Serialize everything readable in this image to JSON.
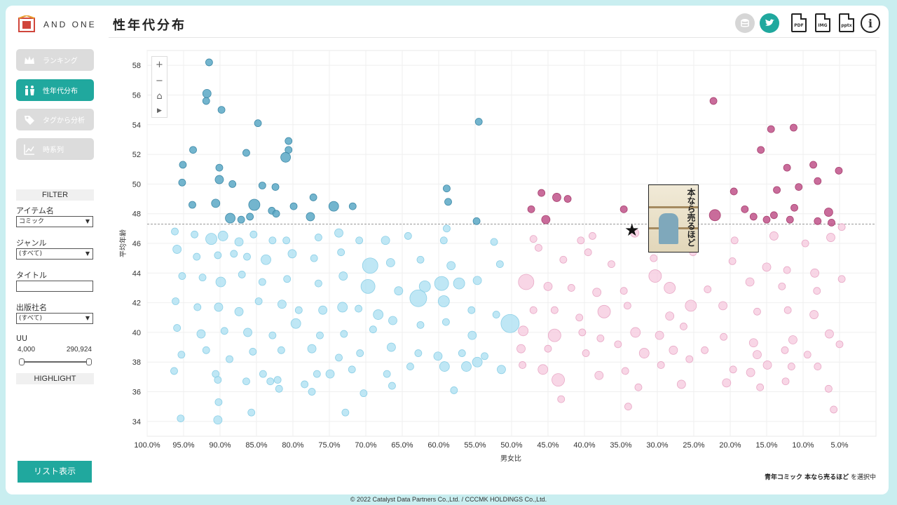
{
  "app": {
    "brand": "AND ONE"
  },
  "sidebar": {
    "nav": [
      {
        "label": "ランキング",
        "icon": "crown-icon",
        "active": false
      },
      {
        "label": "性年代分布",
        "icon": "people-icon",
        "active": true
      },
      {
        "label": "タグから分析",
        "icon": "tag-icon",
        "active": false
      },
      {
        "label": "時系列",
        "icon": "line-chart-icon",
        "active": false
      }
    ],
    "filter": {
      "title": "FILTER",
      "item_label": "アイテム名",
      "item_value": "コミック",
      "genre_label": "ジャンル",
      "genre_value": "(すべて)",
      "title_label": "タイトル",
      "title_value": "",
      "publisher_label": "出版社名",
      "publisher_value": "(すべて)",
      "uu_label": "UU",
      "uu_min": "4,000",
      "uu_max": "290,924"
    },
    "highlight": "HIGHLIGHT",
    "list_button": "リスト表示"
  },
  "header": {
    "title": "性年代分布",
    "tools": [
      {
        "name": "database-icon",
        "label": ""
      },
      {
        "name": "bird-icon",
        "label": ""
      },
      {
        "name": "pdf-export-icon",
        "label": "PDF"
      },
      {
        "name": "img-export-icon",
        "label": "IMG"
      },
      {
        "name": "pptx-export-icon",
        "label": "pptx"
      },
      {
        "name": "info-icon",
        "label": "i"
      }
    ]
  },
  "status": {
    "selected_title": "青年コミック 本なら売るほど",
    "suffix": "を選択中"
  },
  "cover": {
    "title": "本なら売るほど"
  },
  "footer": "© 2022 Catalyst Data Partners Co.,Ltd. / CCCMK HOLDINGS Co.,Ltd.",
  "chart_data": {
    "type": "scatter",
    "title": "性年代分布",
    "xlabel": "男女比",
    "ylabel": "平均年齢",
    "x_reversed": true,
    "xlim": [
      100,
      0
    ],
    "ylim": [
      33,
      59
    ],
    "xticks": [
      "100.0%",
      "95.0%",
      "90.0%",
      "85.0%",
      "80.0%",
      "75.0%",
      "70.0%",
      "65.0%",
      "60.0%",
      "55.0%",
      "50.0%",
      "45.0%",
      "40.0%",
      "35.0%",
      "30.0%",
      "25.0%",
      "20.0%",
      "15.0%",
      "10.0%",
      "5.0%"
    ],
    "yticks": [
      34,
      36,
      38,
      40,
      42,
      44,
      46,
      48,
      50,
      52,
      54,
      56,
      58
    ],
    "reference_line_y": 47.3,
    "selected_point": {
      "x": 34,
      "y": 46.9
    },
    "colors": {
      "male": "#a9dff2",
      "male_dark": "#5ba8c5",
      "female": "#f5c8dd",
      "female_dark": "#c0528a"
    },
    "points": [
      [
        91.5,
        58.2,
        5
      ],
      [
        91.8,
        56.1,
        6
      ],
      [
        91.9,
        55.6,
        5
      ],
      [
        89.8,
        55.0,
        5
      ],
      [
        84.8,
        54.1,
        5
      ],
      [
        54.5,
        54.2,
        5
      ],
      [
        22.3,
        55.6,
        5
      ],
      [
        14.4,
        53.7,
        5
      ],
      [
        11.3,
        53.8,
        5
      ],
      [
        93.7,
        52.3,
        5
      ],
      [
        80.6,
        52.9,
        5
      ],
      [
        80.6,
        52.3,
        5
      ],
      [
        86.4,
        52.1,
        5
      ],
      [
        81.0,
        51.8,
        7
      ],
      [
        90.1,
        51.1,
        5
      ],
      [
        95.1,
        51.3,
        5
      ],
      [
        15.8,
        52.3,
        5
      ],
      [
        12.2,
        51.1,
        5
      ],
      [
        8.6,
        51.3,
        5
      ],
      [
        5.1,
        50.9,
        5
      ],
      [
        90.1,
        50.3,
        6
      ],
      [
        95.2,
        50.1,
        5
      ],
      [
        88.3,
        50.0,
        5
      ],
      [
        84.2,
        49.9,
        5
      ],
      [
        82.4,
        49.8,
        5
      ],
      [
        58.9,
        49.7,
        5
      ],
      [
        19.5,
        49.5,
        5
      ],
      [
        13.6,
        49.6,
        5
      ],
      [
        10.6,
        49.8,
        5
      ],
      [
        8.0,
        50.2,
        5
      ],
      [
        45.9,
        49.4,
        5
      ],
      [
        93.8,
        48.6,
        5
      ],
      [
        90.6,
        48.7,
        6
      ],
      [
        85.3,
        48.6,
        8
      ],
      [
        82.9,
        48.2,
        5
      ],
      [
        79.9,
        48.5,
        5
      ],
      [
        74.4,
        48.5,
        7
      ],
      [
        71.8,
        48.5,
        5
      ],
      [
        77.2,
        49.1,
        5
      ],
      [
        58.7,
        48.8,
        5
      ],
      [
        43.8,
        49.1,
        6
      ],
      [
        42.3,
        49.0,
        5
      ],
      [
        47.3,
        48.3,
        5
      ],
      [
        34.6,
        48.3,
        5
      ],
      [
        18.0,
        48.3,
        5
      ],
      [
        14.0,
        47.9,
        5
      ],
      [
        11.2,
        48.4,
        5
      ],
      [
        6.5,
        48.1,
        6
      ],
      [
        88.6,
        47.7,
        7
      ],
      [
        87.1,
        47.6,
        5
      ],
      [
        85.9,
        47.8,
        5
      ],
      [
        82.3,
        48.0,
        5
      ],
      [
        77.6,
        47.8,
        6
      ],
      [
        58.9,
        47.0,
        5
      ],
      [
        54.8,
        47.5,
        5
      ],
      [
        45.3,
        47.6,
        6
      ],
      [
        22.1,
        47.9,
        8
      ],
      [
        16.8,
        47.8,
        5
      ],
      [
        15.0,
        47.6,
        5
      ],
      [
        11.8,
        47.6,
        5
      ],
      [
        8.0,
        47.5,
        5
      ],
      [
        6.1,
        47.4,
        5
      ],
      [
        96.2,
        46.8,
        5
      ],
      [
        93.5,
        46.6,
        5
      ],
      [
        91.2,
        46.3,
        8
      ],
      [
        89.6,
        46.5,
        7
      ],
      [
        87.4,
        46.1,
        6
      ],
      [
        85.4,
        46.6,
        5
      ],
      [
        82.8,
        46.2,
        5
      ],
      [
        80.9,
        46.2,
        5
      ],
      [
        76.5,
        46.4,
        5
      ],
      [
        73.7,
        46.7,
        6
      ],
      [
        70.9,
        46.2,
        5
      ],
      [
        67.3,
        46.2,
        6
      ],
      [
        64.2,
        46.5,
        5
      ],
      [
        59.3,
        46.2,
        5
      ],
      [
        52.4,
        46.1,
        5
      ],
      [
        47.0,
        46.3,
        5
      ],
      [
        40.5,
        46.2,
        5
      ],
      [
        38.9,
        46.5,
        5
      ],
      [
        33.1,
        46.7,
        6
      ],
      [
        26.9,
        46.3,
        5
      ],
      [
        19.4,
        46.2,
        5
      ],
      [
        14.0,
        46.5,
        6
      ],
      [
        9.7,
        46.0,
        5
      ],
      [
        6.2,
        46.4,
        6
      ],
      [
        4.7,
        47.1,
        5
      ],
      [
        95.9,
        45.6,
        6
      ],
      [
        93.2,
        45.1,
        5
      ],
      [
        90.3,
        45.2,
        5
      ],
      [
        88.1,
        45.3,
        5
      ],
      [
        86.3,
        45.1,
        5
      ],
      [
        83.7,
        44.9,
        7
      ],
      [
        80.1,
        45.3,
        6
      ],
      [
        77.1,
        45.0,
        5
      ],
      [
        73.4,
        45.4,
        5
      ],
      [
        69.4,
        44.5,
        11
      ],
      [
        66.6,
        44.7,
        6
      ],
      [
        62.5,
        44.9,
        5
      ],
      [
        58.3,
        44.5,
        6
      ],
      [
        51.6,
        44.6,
        5
      ],
      [
        46.3,
        45.7,
        5
      ],
      [
        42.9,
        44.9,
        5
      ],
      [
        39.5,
        45.4,
        5
      ],
      [
        36.3,
        44.6,
        5
      ],
      [
        30.5,
        45.0,
        5
      ],
      [
        25.1,
        45.4,
        5
      ],
      [
        19.7,
        44.8,
        5
      ],
      [
        15.0,
        44.4,
        6
      ],
      [
        12.2,
        44.2,
        5
      ],
      [
        8.4,
        44.0,
        6
      ],
      [
        4.7,
        43.6,
        5
      ],
      [
        95.2,
        43.8,
        5
      ],
      [
        92.4,
        43.7,
        5
      ],
      [
        89.9,
        43.4,
        7
      ],
      [
        87.0,
        43.9,
        5
      ],
      [
        84.2,
        43.4,
        5
      ],
      [
        80.8,
        43.6,
        5
      ],
      [
        76.5,
        43.3,
        5
      ],
      [
        73.1,
        43.8,
        6
      ],
      [
        69.7,
        43.1,
        10
      ],
      [
        65.5,
        42.8,
        6
      ],
      [
        61.9,
        43.1,
        8
      ],
      [
        59.6,
        43.3,
        10
      ],
      [
        57.2,
        43.3,
        8
      ],
      [
        54.7,
        43.5,
        6
      ],
      [
        48.0,
        43.4,
        11
      ],
      [
        45.0,
        43.1,
        6
      ],
      [
        41.8,
        43.0,
        5
      ],
      [
        38.3,
        42.7,
        6
      ],
      [
        34.6,
        42.8,
        5
      ],
      [
        30.3,
        43.8,
        9
      ],
      [
        28.3,
        43.0,
        8
      ],
      [
        23.1,
        42.9,
        5
      ],
      [
        17.3,
        43.4,
        6
      ],
      [
        12.9,
        43.1,
        5
      ],
      [
        8.1,
        42.8,
        5
      ],
      [
        96.1,
        42.1,
        5
      ],
      [
        93.1,
        41.7,
        5
      ],
      [
        90.2,
        41.7,
        6
      ],
      [
        87.4,
        41.4,
        6
      ],
      [
        84.7,
        42.1,
        5
      ],
      [
        81.5,
        41.9,
        6
      ],
      [
        79.2,
        41.5,
        5
      ],
      [
        75.9,
        41.5,
        6
      ],
      [
        73.2,
        41.7,
        7
      ],
      [
        71.0,
        41.6,
        5
      ],
      [
        68.3,
        41.2,
        7
      ],
      [
        62.8,
        42.3,
        12
      ],
      [
        59.3,
        42.1,
        8
      ],
      [
        55.5,
        41.5,
        5
      ],
      [
        52.1,
        41.2,
        5
      ],
      [
        47.0,
        41.5,
        5
      ],
      [
        44.1,
        41.5,
        5
      ],
      [
        40.7,
        41.0,
        5
      ],
      [
        37.3,
        41.4,
        9
      ],
      [
        34.1,
        41.8,
        5
      ],
      [
        28.3,
        41.1,
        6
      ],
      [
        25.4,
        41.8,
        8
      ],
      [
        21.0,
        41.8,
        6
      ],
      [
        16.3,
        41.4,
        5
      ],
      [
        12.1,
        41.5,
        5
      ],
      [
        8.5,
        41.2,
        6
      ],
      [
        95.9,
        40.3,
        5
      ],
      [
        92.6,
        39.9,
        6
      ],
      [
        89.4,
        40.1,
        5
      ],
      [
        86.2,
        40.0,
        6
      ],
      [
        82.8,
        39.8,
        5
      ],
      [
        79.6,
        40.6,
        7
      ],
      [
        76.3,
        39.8,
        5
      ],
      [
        73.0,
        39.9,
        5
      ],
      [
        69.0,
        40.2,
        5
      ],
      [
        66.3,
        40.8,
        6
      ],
      [
        62.5,
        40.5,
        5
      ],
      [
        59.0,
        40.7,
        5
      ],
      [
        55.4,
        39.8,
        6
      ],
      [
        50.2,
        40.6,
        13
      ],
      [
        48.4,
        40.1,
        7
      ],
      [
        44.1,
        39.8,
        9
      ],
      [
        40.3,
        40.0,
        5
      ],
      [
        37.8,
        39.6,
        5
      ],
      [
        33.0,
        40.0,
        7
      ],
      [
        29.7,
        39.8,
        6
      ],
      [
        26.4,
        40.4,
        5
      ],
      [
        20.9,
        39.7,
        5
      ],
      [
        16.8,
        39.3,
        6
      ],
      [
        11.4,
        39.5,
        6
      ],
      [
        6.4,
        39.9,
        6
      ],
      [
        95.3,
        38.5,
        5
      ],
      [
        91.9,
        38.8,
        5
      ],
      [
        88.7,
        38.2,
        5
      ],
      [
        85.5,
        38.7,
        5
      ],
      [
        81.6,
        38.8,
        5
      ],
      [
        77.4,
        38.9,
        6
      ],
      [
        73.7,
        38.3,
        5
      ],
      [
        70.8,
        38.6,
        5
      ],
      [
        66.5,
        39.0,
        6
      ],
      [
        62.8,
        38.6,
        5
      ],
      [
        60.1,
        38.4,
        6
      ],
      [
        56.8,
        38.6,
        5
      ],
      [
        53.7,
        38.4,
        5
      ],
      [
        48.7,
        38.9,
        6
      ],
      [
        45.0,
        38.9,
        5
      ],
      [
        39.8,
        38.6,
        5
      ],
      [
        35.4,
        39.2,
        5
      ],
      [
        31.8,
        38.6,
        7
      ],
      [
        27.8,
        38.8,
        6
      ],
      [
        23.5,
        38.8,
        5
      ],
      [
        16.3,
        38.5,
        6
      ],
      [
        12.5,
        38.8,
        5
      ],
      [
        9.4,
        38.5,
        5
      ],
      [
        5.0,
        39.2,
        5
      ],
      [
        96.3,
        37.4,
        5
      ],
      [
        90.6,
        37.2,
        5
      ],
      [
        86.4,
        36.7,
        5
      ],
      [
        84.1,
        37.2,
        5
      ],
      [
        82.1,
        36.8,
        5
      ],
      [
        76.7,
        37.2,
        5
      ],
      [
        74.9,
        37.2,
        6
      ],
      [
        71.9,
        37.5,
        5
      ],
      [
        67.1,
        37.2,
        5
      ],
      [
        63.9,
        37.7,
        5
      ],
      [
        59.2,
        37.7,
        7
      ],
      [
        56.2,
        37.7,
        7
      ],
      [
        54.7,
        38.0,
        7
      ],
      [
        51.4,
        37.5,
        6
      ],
      [
        48.5,
        37.8,
        5
      ],
      [
        45.7,
        37.5,
        7
      ],
      [
        43.6,
        36.8,
        9
      ],
      [
        38.0,
        37.1,
        6
      ],
      [
        34.4,
        37.4,
        5
      ],
      [
        29.5,
        37.8,
        5
      ],
      [
        25.6,
        38.2,
        5
      ],
      [
        19.6,
        37.5,
        5
      ],
      [
        17.2,
        37.3,
        6
      ],
      [
        14.9,
        37.8,
        6
      ],
      [
        11.6,
        37.7,
        5
      ],
      [
        8.0,
        37.7,
        5
      ],
      [
        90.3,
        36.8,
        5
      ],
      [
        83.1,
        36.7,
        5
      ],
      [
        81.9,
        36.2,
        5
      ],
      [
        78.4,
        36.5,
        5
      ],
      [
        77.4,
        36.0,
        5
      ],
      [
        70.3,
        35.9,
        5
      ],
      [
        66.4,
        36.4,
        5
      ],
      [
        57.9,
        36.1,
        5
      ],
      [
        43.2,
        35.5,
        5
      ],
      [
        32.6,
        36.3,
        5
      ],
      [
        26.7,
        36.5,
        6
      ],
      [
        20.5,
        36.6,
        6
      ],
      [
        15.9,
        36.3,
        5
      ],
      [
        12.4,
        36.7,
        5
      ],
      [
        6.5,
        36.2,
        5
      ],
      [
        90.2,
        35.3,
        5
      ],
      [
        85.7,
        34.6,
        5
      ],
      [
        72.8,
        34.6,
        5
      ],
      [
        95.4,
        34.2,
        5
      ],
      [
        90.3,
        34.1,
        6
      ],
      [
        34.0,
        35.0,
        5
      ],
      [
        5.8,
        34.8,
        5
      ]
    ]
  }
}
